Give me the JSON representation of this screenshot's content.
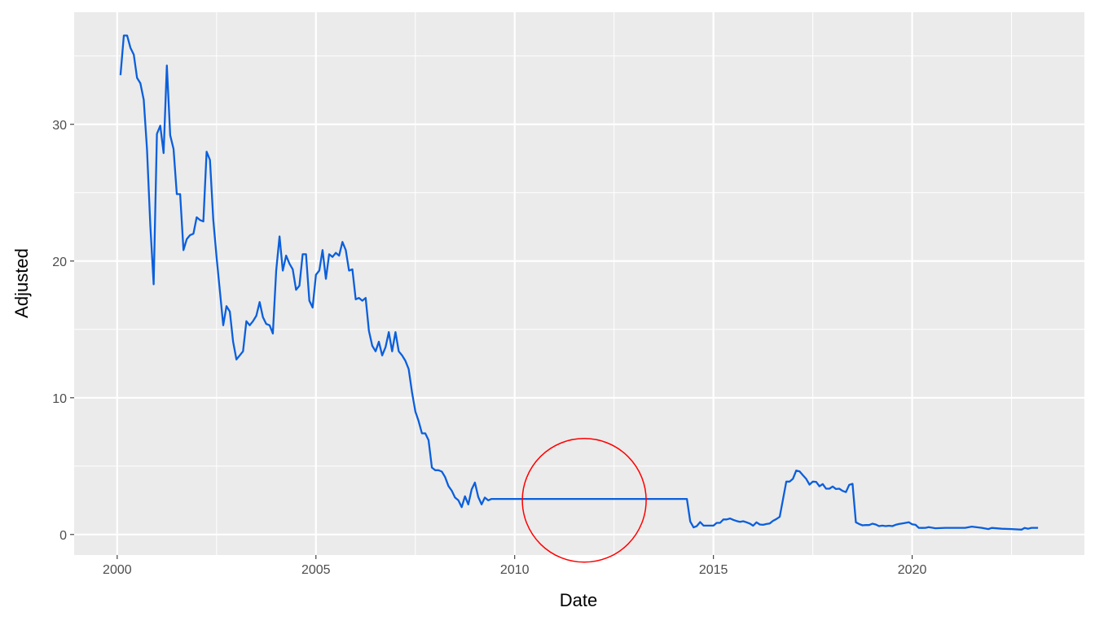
{
  "chart_data": {
    "type": "line",
    "title": "",
    "xlabel": "Date",
    "ylabel": "Adjusted",
    "xlim": [
      "1998-12",
      "2024-05"
    ],
    "ylim": [
      -1.5,
      38.2
    ],
    "x_ticks": [
      "2000",
      "2005",
      "2010",
      "2015",
      "2020"
    ],
    "y_ticks": [
      "0",
      "10",
      "20",
      "30"
    ],
    "grid": true,
    "legend": "none",
    "colors": {
      "line": "#0a5fdc",
      "panel": "#ebebeb",
      "grid": "#ffffff",
      "annotation": "#ff0000"
    },
    "annotation": {
      "shape": "circle",
      "center": [
        "2011-10",
        2.5
      ]
    },
    "series": [
      {
        "x": [
          "2000-02",
          "2000-03",
          "2000-04",
          "2000-05",
          "2000-06",
          "2000-07",
          "2000-08",
          "2000-09",
          "2000-10",
          "2000-11",
          "2000-12",
          "2001-01",
          "2001-02",
          "2001-03",
          "2001-04",
          "2001-05",
          "2001-06",
          "2001-07",
          "2001-08",
          "2001-09",
          "2001-10",
          "2001-11",
          "2001-12",
          "2002-01",
          "2002-02",
          "2002-03",
          "2002-04",
          "2002-05",
          "2002-06",
          "2002-07",
          "2002-08",
          "2002-09",
          "2002-10",
          "2002-11",
          "2002-12",
          "2003-01",
          "2003-02",
          "2003-03",
          "2003-04",
          "2003-05",
          "2003-06",
          "2003-07",
          "2003-08",
          "2003-09",
          "2003-10",
          "2003-11",
          "2003-12",
          "2004-01",
          "2004-02",
          "2004-03",
          "2004-04",
          "2004-05",
          "2004-06",
          "2004-07",
          "2004-08",
          "2004-09",
          "2004-10",
          "2004-11",
          "2004-12",
          "2005-01",
          "2005-02",
          "2005-03",
          "2005-04",
          "2005-05",
          "2005-06",
          "2005-07",
          "2005-08",
          "2005-09",
          "2005-10",
          "2005-11",
          "2005-12",
          "2006-01",
          "2006-02",
          "2006-03",
          "2006-04",
          "2006-05",
          "2006-06",
          "2006-07",
          "2006-08",
          "2006-09",
          "2006-10",
          "2006-11",
          "2006-12",
          "2007-01",
          "2007-02",
          "2007-03",
          "2007-04",
          "2007-05",
          "2007-06",
          "2007-07",
          "2007-08",
          "2007-09",
          "2007-10",
          "2007-11",
          "2007-12",
          "2008-01",
          "2008-02",
          "2008-03",
          "2008-04",
          "2008-05",
          "2008-06",
          "2008-07",
          "2008-08",
          "2008-09",
          "2008-10",
          "2008-11",
          "2008-12",
          "2009-01",
          "2009-02",
          "2009-03",
          "2009-04",
          "2009-05",
          "2009-06",
          "2014-05",
          "2014-06",
          "2014-07",
          "2014-08",
          "2014-09",
          "2014-10",
          "2015-01",
          "2015-02",
          "2015-03",
          "2015-04",
          "2015-05",
          "2015-06",
          "2015-07",
          "2015-08",
          "2015-09",
          "2015-10",
          "2015-11",
          "2015-12",
          "2016-01",
          "2016-02",
          "2016-03",
          "2016-04",
          "2016-05",
          "2016-06",
          "2016-07",
          "2016-08",
          "2016-09",
          "2016-10",
          "2016-11",
          "2016-12",
          "2017-01",
          "2017-02",
          "2017-03",
          "2017-04",
          "2017-05",
          "2017-06",
          "2017-07",
          "2017-08",
          "2017-09",
          "2017-10",
          "2017-11",
          "2017-12",
          "2018-01",
          "2018-02",
          "2018-03",
          "2018-04",
          "2018-05",
          "2018-06",
          "2018-07",
          "2018-08",
          "2018-09",
          "2018-10",
          "2018-11",
          "2018-12",
          "2019-01",
          "2019-02",
          "2019-03",
          "2019-04",
          "2019-05",
          "2019-06",
          "2019-07",
          "2019-08",
          "2019-09",
          "2019-10",
          "2019-11",
          "2019-12",
          "2020-01",
          "2020-02",
          "2020-03",
          "2020-04",
          "2020-05",
          "2020-06",
          "2020-08",
          "2020-11",
          "2021-05",
          "2021-07",
          "2021-10",
          "2021-12",
          "2022-01",
          "2022-04",
          "2022-07",
          "2022-10",
          "2022-11",
          "2022-12",
          "2023-01",
          "2023-03"
        ],
        "y": [
          33.6,
          36.5,
          36.5,
          35.6,
          35.1,
          33.4,
          33.0,
          31.8,
          28.2,
          22.6,
          18.3,
          29.3,
          29.9,
          27.9,
          34.3,
          29.2,
          28.2,
          24.9,
          24.9,
          20.8,
          21.6,
          21.9,
          22.0,
          23.2,
          23.0,
          22.9,
          28.0,
          27.4,
          23.0,
          20.3,
          17.8,
          15.3,
          16.7,
          16.3,
          14.1,
          12.8,
          13.1,
          13.4,
          15.6,
          15.3,
          15.6,
          16.0,
          17.0,
          15.9,
          15.4,
          15.3,
          14.7,
          19.3,
          21.8,
          19.3,
          20.4,
          19.8,
          19.4,
          17.9,
          18.2,
          20.5,
          20.5,
          17.1,
          16.6,
          19.0,
          19.3,
          20.8,
          18.7,
          20.5,
          20.3,
          20.6,
          20.4,
          21.4,
          20.8,
          19.3,
          19.4,
          17.2,
          17.3,
          17.1,
          17.3,
          14.9,
          13.8,
          13.4,
          14.1,
          13.1,
          13.7,
          14.8,
          13.4,
          14.8,
          13.4,
          13.1,
          12.7,
          12.1,
          10.4,
          9.0,
          8.3,
          7.4,
          7.4,
          6.9,
          4.9,
          4.7,
          4.7,
          4.6,
          4.2,
          3.55,
          3.2,
          2.7,
          2.5,
          2.0,
          2.8,
          2.2,
          3.3,
          3.8,
          2.75,
          2.2,
          2.7,
          2.5,
          2.6,
          2.6,
          0.95,
          0.52,
          0.62,
          0.91,
          0.65,
          0.65,
          0.85,
          0.85,
          1.1,
          1.1,
          1.17,
          1.07,
          0.99,
          0.93,
          0.97,
          0.89,
          0.8,
          0.64,
          0.89,
          0.73,
          0.71,
          0.77,
          0.81,
          1.0,
          1.13,
          1.29,
          2.56,
          3.87,
          3.87,
          4.07,
          4.68,
          4.62,
          4.34,
          4.07,
          3.65,
          3.87,
          3.85,
          3.53,
          3.69,
          3.35,
          3.35,
          3.51,
          3.33,
          3.35,
          3.19,
          3.1,
          3.63,
          3.71,
          0.89,
          0.77,
          0.67,
          0.69,
          0.69,
          0.79,
          0.73,
          0.61,
          0.65,
          0.61,
          0.64,
          0.61,
          0.71,
          0.77,
          0.81,
          0.85,
          0.89,
          0.75,
          0.71,
          0.49,
          0.48,
          0.49,
          0.54,
          0.46,
          0.49,
          0.49,
          0.58,
          0.49,
          0.4,
          0.48,
          0.42,
          0.4,
          0.36,
          0.48,
          0.42,
          0.49,
          0.49
        ]
      }
    ]
  }
}
